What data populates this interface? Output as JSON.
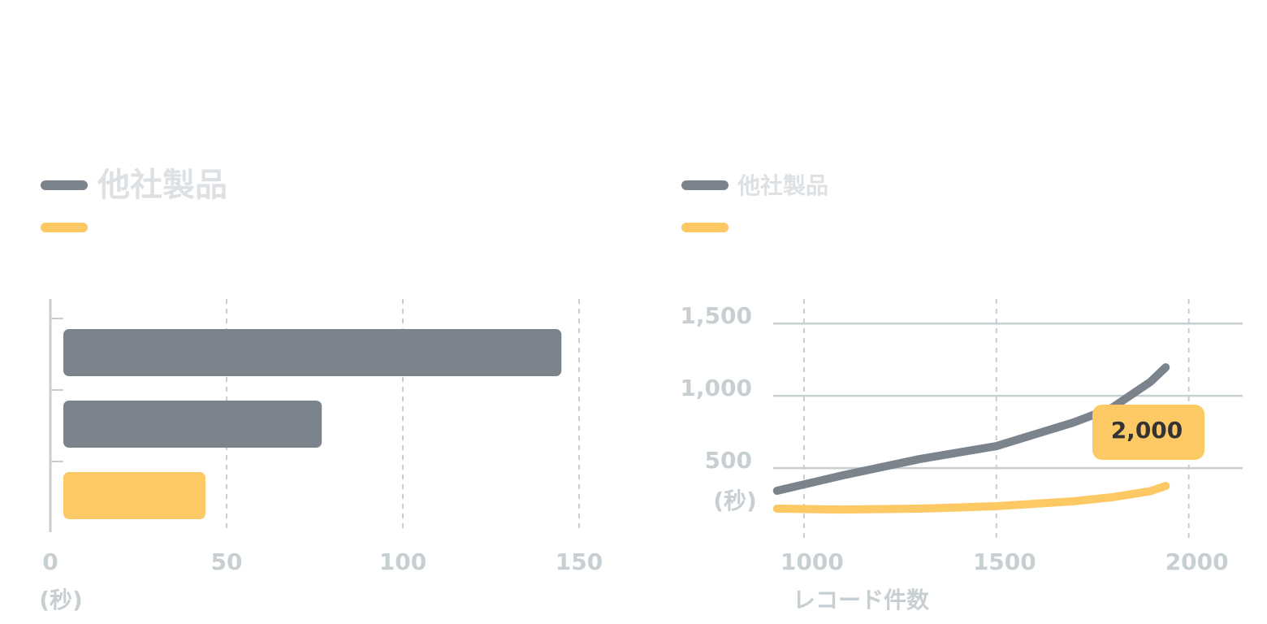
{
  "chart_data": [
    {
      "type": "bar",
      "orientation": "horizontal",
      "categories": [
        null,
        null,
        null
      ],
      "series": [
        {
          "name": "他社製品",
          "color": "#7b838d",
          "values": [
            145,
            77,
            null
          ]
        },
        {
          "name": null,
          "color": "#fdc964",
          "values": [
            null,
            null,
            44
          ]
        }
      ],
      "xlim": [
        0,
        150
      ],
      "xticks": [
        0,
        50,
        100,
        150
      ],
      "x_unit": "(秒)",
      "grid": true
    },
    {
      "type": "line",
      "x": [
        930,
        1100,
        1300,
        1500,
        1700,
        1800,
        1900,
        1940
      ],
      "series": [
        {
          "name": "他社製品",
          "color": "#7b838d",
          "values": [
            343,
            449,
            562,
            652,
            815,
            916,
            1096,
            1197
          ]
        },
        {
          "name": null,
          "color": "#fdc964",
          "values": [
            219,
            213,
            219,
            236,
            270,
            298,
            340,
            376
          ]
        }
      ],
      "xlim": [
        920,
        2140
      ],
      "xticks": [
        1000,
        1500,
        2000
      ],
      "ylim": [
        0,
        1670
      ],
      "yticks": [
        500,
        {
          "value": 1000,
          "label": "1,000"
        },
        {
          "value": 1500,
          "label": "1,500"
        }
      ],
      "y_unit": "(秒)",
      "xlabel": "レコード件数",
      "annotation": "2,000",
      "grid": true
    }
  ]
}
